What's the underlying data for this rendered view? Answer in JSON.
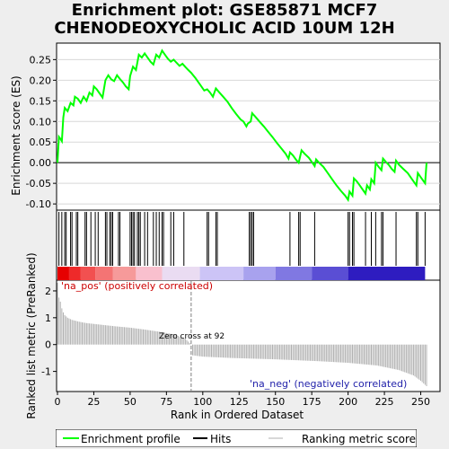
{
  "title_lines": [
    "Enrichment plot: GSE85871 MCF7",
    "CHENODEOXYCHOLIC ACID 10UM 12H"
  ],
  "colors": {
    "es_line": "#00ff00",
    "hits": "#000000",
    "metric_bars": "#b0b0b0",
    "zero_cross_line": "#808080",
    "pos_label": "#cc0000",
    "neg_label": "#2222aa",
    "background": "#eeeeee",
    "panel": "#ffffff"
  },
  "chart_data": {
    "type": "line",
    "x_label": "Rank in Ordered Dataset",
    "es_panel": {
      "ylabel": "Enrichment score (ES)",
      "ylim": [
        -0.115,
        0.29
      ],
      "yticks": [
        -0.1,
        -0.05,
        0.0,
        0.05,
        0.1,
        0.15,
        0.2,
        0.25
      ],
      "ytick_labels": [
        "-0.10",
        "-0.05",
        "0.00",
        "0.05",
        "0.10",
        "0.15",
        "0.20",
        "0.25"
      ],
      "es_points": [
        [
          0,
          0.0
        ],
        [
          1,
          0.063
        ],
        [
          2,
          0.058
        ],
        [
          3,
          0.052
        ],
        [
          4,
          0.11
        ],
        [
          5,
          0.133
        ],
        [
          7,
          0.125
        ],
        [
          9,
          0.145
        ],
        [
          11,
          0.139
        ],
        [
          12,
          0.16
        ],
        [
          14,
          0.155
        ],
        [
          16,
          0.145
        ],
        [
          18,
          0.16
        ],
        [
          20,
          0.15
        ],
        [
          22,
          0.17
        ],
        [
          24,
          0.163
        ],
        [
          25,
          0.185
        ],
        [
          27,
          0.178
        ],
        [
          29,
          0.168
        ],
        [
          31,
          0.158
        ],
        [
          33,
          0.2
        ],
        [
          35,
          0.212
        ],
        [
          37,
          0.202
        ],
        [
          39,
          0.198
        ],
        [
          41,
          0.212
        ],
        [
          43,
          0.203
        ],
        [
          45,
          0.195
        ],
        [
          47,
          0.185
        ],
        [
          49,
          0.178
        ],
        [
          50,
          0.21
        ],
        [
          52,
          0.233
        ],
        [
          54,
          0.225
        ],
        [
          56,
          0.262
        ],
        [
          58,
          0.255
        ],
        [
          60,
          0.265
        ],
        [
          62,
          0.255
        ],
        [
          64,
          0.245
        ],
        [
          66,
          0.238
        ],
        [
          68,
          0.262
        ],
        [
          70,
          0.255
        ],
        [
          72,
          0.272
        ],
        [
          74,
          0.262
        ],
        [
          76,
          0.252
        ],
        [
          78,
          0.245
        ],
        [
          80,
          0.25
        ],
        [
          82,
          0.242
        ],
        [
          84,
          0.235
        ],
        [
          86,
          0.24
        ],
        [
          88,
          0.232
        ],
        [
          90,
          0.225
        ],
        [
          92,
          0.218
        ],
        [
          95,
          0.205
        ],
        [
          98,
          0.19
        ],
        [
          101,
          0.175
        ],
        [
          103,
          0.178
        ],
        [
          105,
          0.17
        ],
        [
          107,
          0.16
        ],
        [
          109,
          0.18
        ],
        [
          111,
          0.172
        ],
        [
          114,
          0.16
        ],
        [
          117,
          0.148
        ],
        [
          120,
          0.132
        ],
        [
          123,
          0.118
        ],
        [
          126,
          0.105
        ],
        [
          128,
          0.1
        ],
        [
          130,
          0.088
        ],
        [
          131,
          0.095
        ],
        [
          133,
          0.1
        ],
        [
          134,
          0.12
        ],
        [
          136,
          0.112
        ],
        [
          139,
          0.1
        ],
        [
          142,
          0.088
        ],
        [
          145,
          0.075
        ],
        [
          148,
          0.062
        ],
        [
          151,
          0.048
        ],
        [
          154,
          0.035
        ],
        [
          157,
          0.022
        ],
        [
          159,
          0.01
        ],
        [
          160,
          0.025
        ],
        [
          162,
          0.018
        ],
        [
          164,
          0.008
        ],
        [
          166,
          0.0
        ],
        [
          168,
          0.03
        ],
        [
          170,
          0.022
        ],
        [
          173,
          0.012
        ],
        [
          175,
          0.002
        ],
        [
          177,
          -0.008
        ],
        [
          178,
          0.008
        ],
        [
          180,
          0.0
        ],
        [
          183,
          -0.01
        ],
        [
          186,
          -0.025
        ],
        [
          189,
          -0.04
        ],
        [
          192,
          -0.055
        ],
        [
          195,
          -0.068
        ],
        [
          198,
          -0.08
        ],
        [
          200,
          -0.09
        ],
        [
          201,
          -0.07
        ],
        [
          203,
          -0.08
        ],
        [
          204,
          -0.038
        ],
        [
          206,
          -0.045
        ],
        [
          208,
          -0.055
        ],
        [
          210,
          -0.065
        ],
        [
          212,
          -0.075
        ],
        [
          213,
          -0.055
        ],
        [
          215,
          -0.065
        ],
        [
          216,
          -0.04
        ],
        [
          218,
          -0.05
        ],
        [
          219,
          0.0
        ],
        [
          221,
          -0.01
        ],
        [
          223,
          -0.018
        ],
        [
          224,
          0.01
        ],
        [
          226,
          0.002
        ],
        [
          228,
          -0.005
        ],
        [
          230,
          -0.015
        ],
        [
          232,
          -0.022
        ],
        [
          233,
          0.005
        ],
        [
          235,
          -0.005
        ],
        [
          238,
          -0.015
        ],
        [
          241,
          -0.025
        ],
        [
          244,
          -0.04
        ],
        [
          247,
          -0.055
        ],
        [
          248,
          -0.025
        ],
        [
          250,
          -0.035
        ],
        [
          252,
          -0.045
        ],
        [
          253,
          -0.05
        ],
        [
          254,
          0.0
        ]
      ]
    },
    "hits_panel": {
      "hit_ranks": [
        1,
        3,
        5,
        6,
        9,
        10,
        13,
        14,
        19,
        20,
        23,
        26,
        28,
        33,
        34,
        36,
        37,
        38,
        42,
        43,
        50,
        51,
        52,
        53,
        55,
        56,
        57,
        60,
        62,
        66,
        68,
        70,
        72,
        73,
        78,
        80,
        87,
        103,
        104,
        109,
        110,
        132,
        133,
        134,
        135,
        160,
        166,
        167,
        177,
        200,
        201,
        203,
        204,
        212,
        216,
        219,
        223,
        224,
        233,
        247,
        248,
        253
      ]
    },
    "metric_panel": {
      "ylabel": "Ranked list metric (PreRanked)",
      "ylim": [
        -1.75,
        2.4
      ],
      "yticks": [
        -1,
        0,
        1,
        2
      ],
      "ytick_labels": [
        "-1",
        "0",
        "1",
        "2"
      ],
      "metric_points": [
        [
          0,
          2.3
        ],
        [
          1,
          1.75
        ],
        [
          2,
          1.6
        ],
        [
          3,
          1.35
        ],
        [
          4,
          1.2
        ],
        [
          5,
          1.1
        ],
        [
          7,
          1.0
        ],
        [
          10,
          0.92
        ],
        [
          15,
          0.85
        ],
        [
          20,
          0.8
        ],
        [
          30,
          0.74
        ],
        [
          40,
          0.68
        ],
        [
          50,
          0.63
        ],
        [
          60,
          0.56
        ],
        [
          70,
          0.48
        ],
        [
          80,
          0.38
        ],
        [
          88,
          0.22
        ],
        [
          92,
          0.0
        ],
        [
          93,
          -0.4
        ],
        [
          100,
          -0.45
        ],
        [
          120,
          -0.5
        ],
        [
          150,
          -0.55
        ],
        [
          180,
          -0.62
        ],
        [
          200,
          -0.68
        ],
        [
          220,
          -0.78
        ],
        [
          235,
          -0.95
        ],
        [
          245,
          -1.15
        ],
        [
          250,
          -1.35
        ],
        [
          254,
          -1.55
        ]
      ],
      "zero_cross_rank": 92,
      "zero_cross_label": "Zero cross at 92",
      "pos_label": "'na_pos' (positively correlated)",
      "neg_label": "'na_neg' (negatively correlated)"
    },
    "xlim": [
      0,
      254
    ],
    "xticks": [
      0,
      25,
      50,
      75,
      100,
      125,
      150,
      175,
      200,
      225,
      250
    ],
    "xtick_labels": [
      "0",
      "25",
      "50",
      "75",
      "100",
      "125",
      "150",
      "175",
      "200",
      "225",
      "250"
    ],
    "heatmap_colors": [
      "#e60000",
      "#ee2a2a",
      "#f25050",
      "#f47474",
      "#f69a9a",
      "#f9c0ce",
      "#eadcf2",
      "#ccc4f6",
      "#a8a2ee",
      "#8078e2",
      "#5a4ed4",
      "#2e1cc0"
    ]
  },
  "legend": [
    {
      "name": "Enrichment profile",
      "color": "#00ff00"
    },
    {
      "name": "Hits",
      "color": "#000000"
    },
    {
      "name": "Ranking metric scores",
      "color": "#b0b0b0"
    }
  ]
}
